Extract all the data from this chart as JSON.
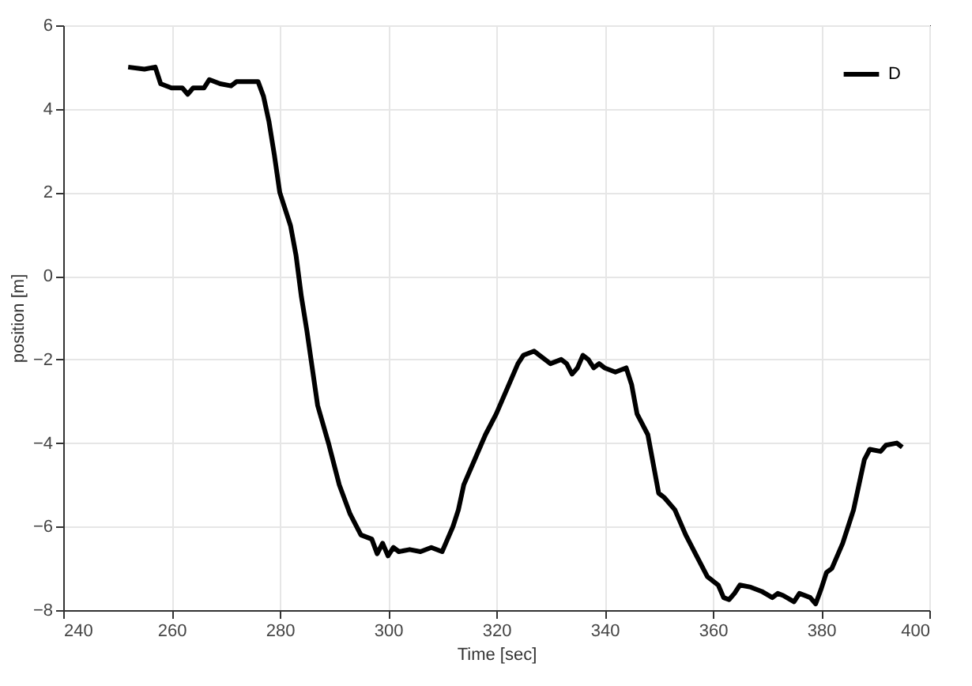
{
  "chart_data": {
    "type": "line",
    "xlabel": "Time [sec]",
    "ylabel": "position [m]",
    "xlim": [
      240,
      400
    ],
    "xticks": [
      240,
      260,
      280,
      300,
      320,
      340,
      360,
      380,
      400
    ],
    "ylim": [
      -8,
      6
    ],
    "yticks": [
      -8,
      -6,
      -4,
      -2,
      0,
      2,
      4,
      6
    ],
    "grid": true,
    "legend": "top right",
    "marker": "none",
    "line_style": "solid",
    "series": [
      {
        "name": "D",
        "color": "#000000",
        "x": [
          252,
          255,
          257,
          258,
          260,
          262,
          263,
          264,
          266,
          267,
          269,
          271,
          272,
          274,
          276,
          277,
          278,
          279,
          280,
          282,
          283,
          284,
          285,
          286,
          287,
          289,
          291,
          293,
          295,
          297,
          298,
          299,
          300,
          301,
          302,
          304,
          306,
          308,
          310,
          311,
          312,
          313,
          314,
          316,
          318,
          320,
          322,
          324,
          325,
          327,
          329,
          330,
          332,
          333,
          334,
          335,
          336,
          337,
          338,
          339,
          340,
          342,
          344,
          345,
          346,
          348,
          349,
          350,
          351,
          353,
          355,
          357,
          359,
          361,
          362,
          363,
          364,
          365,
          367,
          369,
          371,
          372,
          373,
          375,
          376,
          378,
          379,
          380,
          381,
          382,
          384,
          385,
          386,
          387,
          388,
          389,
          391,
          392,
          394,
          395
        ],
        "values": [
          5.0,
          4.95,
          5.0,
          4.6,
          4.5,
          4.5,
          4.35,
          4.5,
          4.5,
          4.7,
          4.6,
          4.55,
          4.65,
          4.65,
          4.65,
          4.3,
          3.7,
          2.9,
          2.0,
          1.2,
          0.5,
          -0.5,
          -1.3,
          -2.2,
          -3.1,
          -4.0,
          -5.0,
          -5.7,
          -6.2,
          -6.3,
          -6.65,
          -6.4,
          -6.7,
          -6.5,
          -6.6,
          -6.55,
          -6.6,
          -6.5,
          -6.6,
          -6.3,
          -6.0,
          -5.6,
          -5.0,
          -4.4,
          -3.8,
          -3.3,
          -2.7,
          -2.1,
          -1.9,
          -1.8,
          -2.0,
          -2.1,
          -2.0,
          -2.1,
          -2.35,
          -2.2,
          -1.9,
          -2.0,
          -2.2,
          -2.1,
          -2.2,
          -2.3,
          -2.2,
          -2.6,
          -3.3,
          -3.8,
          -4.5,
          -5.2,
          -5.3,
          -5.6,
          -6.2,
          -6.7,
          -7.2,
          -7.4,
          -7.7,
          -7.75,
          -7.6,
          -7.4,
          -7.45,
          -7.55,
          -7.7,
          -7.6,
          -7.65,
          -7.8,
          -7.6,
          -7.7,
          -7.85,
          -7.5,
          -7.1,
          -7.0,
          -6.4,
          -6.0,
          -5.6,
          -5.0,
          -4.4,
          -4.15,
          -4.2,
          -4.05,
          -4.0,
          -4.1
        ]
      }
    ]
  }
}
